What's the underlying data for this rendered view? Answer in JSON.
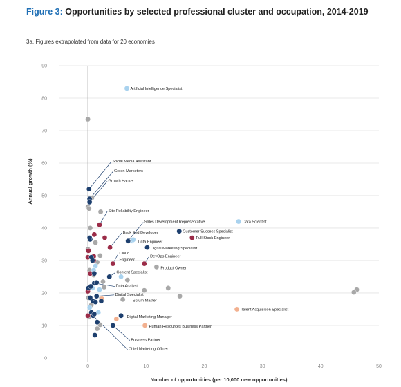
{
  "header": {
    "figure_label": "Figure 3:",
    "title": "Opportunities by selected professional cluster and occupation, 2014-2019",
    "subtitle": "3a. Figures extrapolated from data for 20 economies"
  },
  "colors": {
    "navy": "#1d3f6e",
    "red": "#9b2c48",
    "light_blue": "#a9d2ee",
    "grey": "#a8a8a8",
    "peach": "#f2b08f",
    "leader": "#1d3f6e"
  },
  "chart_data": {
    "type": "scatter",
    "title": "",
    "xlabel": "Number of opportunities (per 10,000 new opportunities)",
    "ylabel": "Annual growth (%)",
    "xlim": [
      -5,
      50
    ],
    "ylim": [
      -3,
      90
    ],
    "xticks": [
      0,
      10,
      20,
      30,
      40,
      50
    ],
    "yticks": [
      0,
      10,
      20,
      30,
      40,
      50,
      60,
      70,
      80,
      90
    ],
    "grid": "horizontal",
    "points": [
      {
        "x": 6.7,
        "y": 83,
        "c": "light_blue",
        "label": "Artificial Intelligence Specialist",
        "lx": 7.3,
        "ly": 83
      },
      {
        "x": 25.9,
        "y": 42,
        "c": "light_blue",
        "label": "Data Scientist",
        "lx": 26.6,
        "ly": 42
      },
      {
        "x": 25.6,
        "y": 15,
        "c": "peach",
        "label": "Talent Acquisition Specialist",
        "lx": 26.3,
        "ly": 15
      },
      {
        "x": 0.2,
        "y": 52,
        "c": "navy",
        "label": "Social Media Assistant",
        "lx": 4.2,
        "ly": 60.6,
        "leader": true
      },
      {
        "x": 0.3,
        "y": 49,
        "c": "navy",
        "label": "Green Marketers",
        "lx": 4.5,
        "ly": 57.6,
        "leader": true
      },
      {
        "x": 0.3,
        "y": 48,
        "c": "navy",
        "label": "Growth Hacker",
        "lx": 3.5,
        "ly": 54.6,
        "leader": true
      },
      {
        "x": 2.0,
        "y": 41,
        "c": "red",
        "label": "Site Reliability Engineer",
        "lx": 3.5,
        "ly": 45.3,
        "leader": true
      },
      {
        "x": 6.9,
        "y": 36,
        "c": "navy",
        "label": "Sales Development Representative",
        "lx": 9.7,
        "ly": 42,
        "leader": true
      },
      {
        "x": 15.7,
        "y": 39,
        "c": "navy",
        "label": "Customer Success Specialist",
        "lx": 16.3,
        "ly": 39
      },
      {
        "x": 17.9,
        "y": 37,
        "c": "red",
        "label": "Full Stack Engineer",
        "lx": 18.6,
        "ly": 37
      },
      {
        "x": 3.8,
        "y": 34,
        "c": "red",
        "label": "Back End Developer",
        "lx": 6.0,
        "ly": 38.7,
        "leader": true
      },
      {
        "x": 7.6,
        "y": 36,
        "c": "light_blue",
        "label": "Data Engineer",
        "lx": 8.6,
        "ly": 35.8
      },
      {
        "x": 10.2,
        "y": 34,
        "c": "navy",
        "label": "Digital Marketing Specialist",
        "lx": 10.8,
        "ly": 33.8
      },
      {
        "x": 4.3,
        "y": 29,
        "c": "red",
        "label": "Cloud Engineer",
        "lx": 5.4,
        "ly": 32.3,
        "label2": "Engineer",
        "ly2": 30.3,
        "leader": true
      },
      {
        "x": 9.7,
        "y": 29,
        "c": "red",
        "label": "DevOps Engineer",
        "lx": 10.7,
        "ly": 31.4,
        "leader": true
      },
      {
        "x": 11.8,
        "y": 28,
        "c": "grey",
        "label": "Product Owner",
        "lx": 12.5,
        "ly": 27.8
      },
      {
        "x": 3.7,
        "y": 25,
        "c": "navy",
        "label": "Content Specialist",
        "lx": 4.9,
        "ly": 26.5,
        "leader": true
      },
      {
        "x": 1.1,
        "y": 23,
        "c": "navy",
        "label": "Data Analyst",
        "lx": 4.8,
        "ly": 22.2,
        "leader": true
      },
      {
        "x": 1.5,
        "y": 19,
        "c": "navy",
        "label": "Digital Specialist",
        "lx": 4.7,
        "ly": 19.6,
        "leader": true
      },
      {
        "x": 6.0,
        "y": 18,
        "c": "grey",
        "label": "Scrum Master",
        "lx": 7.7,
        "ly": 17.7
      },
      {
        "x": 5.7,
        "y": 13,
        "c": "navy",
        "label": "Digital Marketing Manager",
        "lx": 6.7,
        "ly": 12.8
      },
      {
        "x": 9.8,
        "y": 10,
        "c": "peach",
        "label": "Human Resources Business Partner",
        "lx": 10.5,
        "ly": 9.8
      },
      {
        "x": 4.3,
        "y": 10,
        "c": "navy",
        "label": "Business Partner",
        "lx": 7.4,
        "ly": 5.6,
        "leader": true
      },
      {
        "x": 0.9,
        "y": 13,
        "c": "navy",
        "label": "Chief Marketing Officer",
        "lx": 7.0,
        "ly": 2.8,
        "leader": true
      },
      {
        "x": 0.0,
        "y": 73.5,
        "c": "grey"
      },
      {
        "x": 46.2,
        "y": 21,
        "c": "grey"
      },
      {
        "x": 45.7,
        "y": 20.2,
        "c": "grey"
      },
      {
        "x": 13.8,
        "y": 21.5,
        "c": "grey"
      },
      {
        "x": 15.8,
        "y": 19,
        "c": "grey"
      },
      {
        "x": 9.7,
        "y": 20.8,
        "c": "grey"
      },
      {
        "x": 6.8,
        "y": 24,
        "c": "grey"
      },
      {
        "x": 2.2,
        "y": 45,
        "c": "grey"
      },
      {
        "x": 0.7,
        "y": 49.3,
        "c": "grey"
      },
      {
        "x": 0.0,
        "y": 46.5,
        "c": "grey"
      },
      {
        "x": 0.2,
        "y": 46,
        "c": "grey"
      },
      {
        "x": 0.4,
        "y": 40,
        "c": "grey"
      },
      {
        "x": 1.3,
        "y": 35.5,
        "c": "grey"
      },
      {
        "x": 0.0,
        "y": 33.5,
        "c": "grey"
      },
      {
        "x": 2.1,
        "y": 31.5,
        "c": "grey"
      },
      {
        "x": 0.3,
        "y": 27,
        "c": "grey"
      },
      {
        "x": 1.0,
        "y": 25.5,
        "c": "grey"
      },
      {
        "x": 2.8,
        "y": 21.8,
        "c": "grey"
      },
      {
        "x": 2.3,
        "y": 18.3,
        "c": "grey"
      },
      {
        "x": 0.1,
        "y": 18.5,
        "c": "grey"
      },
      {
        "x": 0.6,
        "y": 16.3,
        "c": "grey"
      },
      {
        "x": 2.1,
        "y": 10.2,
        "c": "grey"
      },
      {
        "x": 1.6,
        "y": 9,
        "c": "grey"
      },
      {
        "x": 2.6,
        "y": 23.5,
        "c": "grey"
      },
      {
        "x": 0.2,
        "y": 12.6,
        "c": "grey"
      },
      {
        "x": 1.6,
        "y": 29.5,
        "c": "grey"
      },
      {
        "x": 0.4,
        "y": 36.5,
        "c": "navy"
      },
      {
        "x": 0.3,
        "y": 37,
        "c": "navy"
      },
      {
        "x": 0.6,
        "y": 31,
        "c": "navy"
      },
      {
        "x": 0.8,
        "y": 30,
        "c": "navy"
      },
      {
        "x": 1.1,
        "y": 26,
        "c": "navy"
      },
      {
        "x": 0.1,
        "y": 21.5,
        "c": "navy"
      },
      {
        "x": 0.5,
        "y": 22,
        "c": "navy"
      },
      {
        "x": 0.4,
        "y": 18.5,
        "c": "navy"
      },
      {
        "x": 0.9,
        "y": 17.5,
        "c": "navy"
      },
      {
        "x": 1.3,
        "y": 17.2,
        "c": "navy"
      },
      {
        "x": 0.6,
        "y": 14,
        "c": "navy"
      },
      {
        "x": 1.1,
        "y": 13.5,
        "c": "navy"
      },
      {
        "x": 1.6,
        "y": 11,
        "c": "navy"
      },
      {
        "x": 1.2,
        "y": 7,
        "c": "navy"
      },
      {
        "x": 2.3,
        "y": 17.5,
        "c": "navy"
      },
      {
        "x": 1.5,
        "y": 23.2,
        "c": "navy"
      },
      {
        "x": 1.1,
        "y": 38,
        "c": "red"
      },
      {
        "x": 2.9,
        "y": 37,
        "c": "red"
      },
      {
        "x": 0.1,
        "y": 33,
        "c": "red"
      },
      {
        "x": 0.0,
        "y": 31,
        "c": "red"
      },
      {
        "x": 1.0,
        "y": 30,
        "c": "red"
      },
      {
        "x": 0.4,
        "y": 26,
        "c": "red"
      },
      {
        "x": 0.0,
        "y": 20.5,
        "c": "red"
      },
      {
        "x": 0.0,
        "y": 13,
        "c": "red"
      },
      {
        "x": 1.0,
        "y": 31.3,
        "c": "red"
      },
      {
        "x": 1.3,
        "y": 28.3,
        "c": "light_blue"
      },
      {
        "x": 1.0,
        "y": 27,
        "c": "light_blue"
      },
      {
        "x": 0.8,
        "y": 21.5,
        "c": "light_blue"
      },
      {
        "x": 2.0,
        "y": 21,
        "c": "light_blue"
      },
      {
        "x": 1.8,
        "y": 14,
        "c": "light_blue"
      },
      {
        "x": 5.7,
        "y": 25,
        "c": "light_blue"
      },
      {
        "x": 0.3,
        "y": 15.5,
        "c": "light_blue"
      },
      {
        "x": 7.8,
        "y": 36.4,
        "c": "light_blue"
      },
      {
        "x": 2.4,
        "y": 18.2,
        "c": "peach"
      },
      {
        "x": 4.9,
        "y": 12,
        "c": "peach"
      }
    ]
  }
}
